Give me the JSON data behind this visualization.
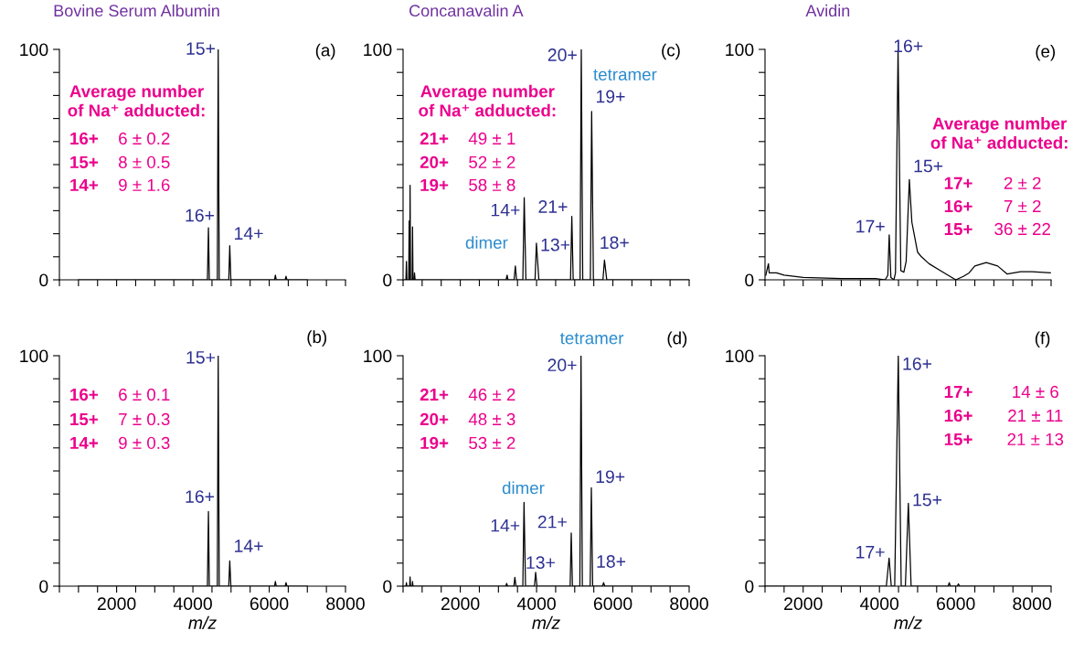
{
  "chart_data": [
    {
      "type": "line",
      "title": "Bovine Serum Albumin",
      "tick_labels": "y",
      "marker": "none",
      "line_style": "solid",
      "xlim": [
        500,
        8000
      ],
      "xticks": [
        {
          "value": 500,
          "label": null
        },
        {
          "value": 1000,
          "label": null
        },
        {
          "value": 1500,
          "label": null
        },
        {
          "value": 2000,
          "label": null
        },
        {
          "value": 2500,
          "label": null
        },
        {
          "value": 3000,
          "label": null
        },
        {
          "value": 3500,
          "label": null
        },
        {
          "value": 4000,
          "label": null
        },
        {
          "value": 4500,
          "label": null
        },
        {
          "value": 5000,
          "label": null
        },
        {
          "value": 5500,
          "label": null
        },
        {
          "value": 6000,
          "label": null
        },
        {
          "value": 6500,
          "label": null
        },
        {
          "value": 7000,
          "label": null
        },
        {
          "value": 7500,
          "label": null
        },
        {
          "value": 8000,
          "label": null
        }
      ],
      "ylim": [
        0,
        100
      ],
      "yticks": [
        0,
        {
          "value": 10,
          "label": null
        },
        {
          "value": 20,
          "label": null
        },
        {
          "value": 30,
          "label": null
        },
        {
          "value": 40,
          "label": null
        },
        {
          "value": 50,
          "label": null
        },
        {
          "value": 60,
          "label": null
        },
        {
          "value": 70,
          "label": null
        },
        {
          "value": 80,
          "label": null
        },
        {
          "value": 90,
          "label": null
        },
        100
      ],
      "series": [
        {
          "color": "#000000",
          "x": [
            1000,
            4380,
            4407,
            4430,
            4640,
            4663,
            4690,
            4940,
            4966,
            4995,
            6140,
            6162,
            6185,
            6420,
            6441,
            6465,
            7000
          ],
          "values": [
            0,
            0,
            22.6,
            0,
            0,
            100,
            0,
            0,
            14.8,
            0,
            0,
            2,
            0,
            0,
            1.5,
            0,
            0
          ]
        }
      ],
      "annotations": [
        "(a)",
        "Average number\nof Na⁺ adducted:",
        "16+",
        "6 ± 0.2",
        "15+",
        "8 ± 0.5",
        "14+",
        "9 ± 1.6",
        {
          "text": "15+",
          "x": 4663,
          "y": 100
        },
        {
          "text": "16+",
          "x": 4407,
          "y": 22.6
        },
        {
          "text": "14+",
          "x": 4966,
          "y": 14.8
        }
      ]
    },
    {
      "type": "line",
      "title": "Concanavalin A",
      "tick_labels": "y",
      "marker": "none",
      "line_style": "solid",
      "xlim": [
        500,
        8000
      ],
      "xticks": [
        {
          "value": 500,
          "label": null
        },
        {
          "value": 1000,
          "label": null
        },
        {
          "value": 1500,
          "label": null
        },
        {
          "value": 2000,
          "label": null
        },
        {
          "value": 2500,
          "label": null
        },
        {
          "value": 3000,
          "label": null
        },
        {
          "value": 3500,
          "label": null
        },
        {
          "value": 4000,
          "label": null
        },
        {
          "value": 4500,
          "label": null
        },
        {
          "value": 5000,
          "label": null
        },
        {
          "value": 5500,
          "label": null
        },
        {
          "value": 6000,
          "label": null
        },
        {
          "value": 6500,
          "label": null
        },
        {
          "value": 7000,
          "label": null
        },
        {
          "value": 7500,
          "label": null
        },
        {
          "value": 8000,
          "label": null
        }
      ],
      "ylim": [
        0,
        100
      ],
      "yticks": [
        0,
        {
          "value": 10,
          "label": null
        },
        {
          "value": 20,
          "label": null
        },
        {
          "value": 30,
          "label": null
        },
        {
          "value": 40,
          "label": null
        },
        {
          "value": 50,
          "label": null
        },
        {
          "value": 60,
          "label": null
        },
        {
          "value": 70,
          "label": null
        },
        {
          "value": 80,
          "label": null
        },
        {
          "value": 90,
          "label": null
        },
        100
      ],
      "series": [
        {
          "color": "#000000",
          "x": [
            540,
            575,
            588,
            600,
            648,
            660,
            670,
            676,
            684,
            695,
            738,
            748,
            760,
            790,
            800,
            815,
            3200,
            3228,
            3250,
            3410,
            3444,
            3475,
            3640,
            3676,
            3720,
            3960,
            3996,
            4060,
            4890,
            4924,
            4960,
            5140,
            5172,
            5210,
            5410,
            5444,
            5490,
            5740,
            5780,
            5840,
            8000
          ],
          "values": [
            0,
            0,
            8,
            0,
            0,
            25.5,
            0,
            0,
            41,
            0,
            0,
            23,
            0,
            0,
            3,
            0,
            0,
            2,
            0,
            0,
            6,
            0,
            0,
            35.7,
            0,
            0,
            15.9,
            0,
            0,
            27.5,
            0,
            0,
            100,
            0,
            0,
            73.1,
            0,
            0,
            8.6,
            0,
            0
          ]
        }
      ],
      "annotations": [
        "(c)",
        "Average number\nof Na⁺ adducted:",
        "21+",
        "49 ± 1",
        "20+",
        "52 ± 2",
        "19+",
        "58 ± 8",
        "tetramer",
        "dimer",
        {
          "text": "20+",
          "x": 5172,
          "y": 100
        },
        {
          "text": "19+",
          "x": 5444,
          "y": 73.1
        },
        {
          "text": "21+",
          "x": 4924,
          "y": 27.5
        },
        {
          "text": "14+",
          "x": 3676,
          "y": 35.7
        },
        {
          "text": "13+",
          "x": 3996,
          "y": 15.9
        },
        {
          "text": "18+",
          "x": 5780,
          "y": 8.6
        }
      ]
    },
    {
      "type": "line",
      "title": "Avidin",
      "tick_labels": "y",
      "marker": "none",
      "line_style": "solid",
      "xlim": [
        1000,
        8500
      ],
      "xticks": [
        {
          "value": 1000,
          "label": null
        },
        {
          "value": 1500,
          "label": null
        },
        {
          "value": 2000,
          "label": null
        },
        {
          "value": 2500,
          "label": null
        },
        {
          "value": 3000,
          "label": null
        },
        {
          "value": 3500,
          "label": null
        },
        {
          "value": 4000,
          "label": null
        },
        {
          "value": 4500,
          "label": null
        },
        {
          "value": 5000,
          "label": null
        },
        {
          "value": 5500,
          "label": null
        },
        {
          "value": 6000,
          "label": null
        },
        {
          "value": 6500,
          "label": null
        },
        {
          "value": 7000,
          "label": null
        },
        {
          "value": 7500,
          "label": null
        },
        {
          "value": 8000,
          "label": null
        },
        {
          "value": 8500,
          "label": null
        }
      ],
      "ylim": [
        0,
        100
      ],
      "yticks": [
        0,
        {
          "value": 10,
          "label": null
        },
        {
          "value": 20,
          "label": null
        },
        {
          "value": 30,
          "label": null
        },
        {
          "value": 40,
          "label": null
        },
        {
          "value": 50,
          "label": null
        },
        {
          "value": 60,
          "label": null
        },
        {
          "value": 70,
          "label": null
        },
        {
          "value": 80,
          "label": null
        },
        {
          "value": 90,
          "label": null
        },
        100
      ],
      "series": [
        {
          "color": "#000000",
          "x": [
            1020,
            1090,
            1110,
            1300,
            1500,
            2000,
            3000,
            3900,
            4150,
            4220,
            4256,
            4300,
            4380,
            4420,
            4488,
            4560,
            4640,
            4700,
            4784,
            4850,
            5000,
            5100,
            5300,
            5600,
            5900,
            6000,
            6200,
            6350,
            6500,
            6800,
            7100,
            7350,
            7700,
            8000,
            8480
          ],
          "values": [
            2,
            7,
            3,
            3,
            2,
            1,
            0.5,
            0.5,
            0,
            2,
            19.5,
            1,
            0,
            3,
            100,
            4,
            3.3,
            8,
            43.5,
            25,
            12,
            10,
            7,
            4,
            1,
            0,
            1.5,
            3,
            6,
            7.5,
            6,
            2.5,
            3.5,
            3.5,
            3
          ]
        }
      ],
      "annotations": [
        "(e)",
        "Average number\nof Na⁺ adducted:",
        "17+",
        "2 ± 2",
        "16+",
        "7 ± 2",
        "15+",
        "36 ± 22",
        {
          "text": "16+",
          "x": 4488,
          "y": 100
        },
        {
          "text": "15+",
          "x": 4784,
          "y": 43.5
        },
        {
          "text": "17+",
          "x": 4256,
          "y": 19.5
        }
      ]
    },
    {
      "type": "line",
      "xlabel": "m/z",
      "marker": "none",
      "line_style": "solid",
      "xlim": [
        500,
        8000
      ],
      "xticks": [
        {
          "value": 500,
          "label": null
        },
        {
          "value": 1000,
          "label": null
        },
        {
          "value": 1500,
          "label": null
        },
        2000,
        {
          "value": 2500,
          "label": null
        },
        {
          "value": 3000,
          "label": null
        },
        {
          "value": 3500,
          "label": null
        },
        4000,
        {
          "value": 4500,
          "label": null
        },
        {
          "value": 5000,
          "label": null
        },
        {
          "value": 5500,
          "label": null
        },
        6000,
        {
          "value": 6500,
          "label": null
        },
        {
          "value": 7000,
          "label": null
        },
        {
          "value": 7500,
          "label": null
        },
        8000
      ],
      "ylim": [
        0,
        100
      ],
      "yticks": [
        0,
        {
          "value": 10,
          "label": null
        },
        {
          "value": 20,
          "label": null
        },
        {
          "value": 30,
          "label": null
        },
        {
          "value": 40,
          "label": null
        },
        {
          "value": 50,
          "label": null
        },
        {
          "value": 60,
          "label": null
        },
        {
          "value": 70,
          "label": null
        },
        {
          "value": 80,
          "label": null
        },
        {
          "value": 90,
          "label": null
        },
        100
      ],
      "series": [
        {
          "color": "#000000",
          "x": [
            1000,
            4380,
            4407,
            4430,
            4640,
            4663,
            4690,
            4940,
            4966,
            4995,
            6140,
            6162,
            6185,
            6420,
            6441,
            6465,
            7000
          ],
          "values": [
            0,
            0,
            32.4,
            0,
            0,
            100,
            0,
            0,
            11.0,
            0,
            0,
            2,
            0,
            0,
            1.5,
            0,
            0
          ]
        }
      ],
      "annotations": [
        "(b)",
        "16+",
        "6 ± 0.1",
        "15+",
        "7 ± 0.3",
        "14+",
        "9 ± 0.3",
        {
          "text": "15+",
          "x": 4663,
          "y": 100
        },
        {
          "text": "16+",
          "x": 4407,
          "y": 32.4
        },
        {
          "text": "14+",
          "x": 4966,
          "y": 11.0
        }
      ]
    },
    {
      "type": "line",
      "xlabel": "m/z",
      "marker": "none",
      "line_style": "solid",
      "xlim": [
        500,
        8000
      ],
      "xticks": [
        {
          "value": 500,
          "label": null
        },
        {
          "value": 1000,
          "label": null
        },
        {
          "value": 1500,
          "label": null
        },
        2000,
        {
          "value": 2500,
          "label": null
        },
        {
          "value": 3000,
          "label": null
        },
        {
          "value": 3500,
          "label": null
        },
        4000,
        {
          "value": 4500,
          "label": null
        },
        {
          "value": 5000,
          "label": null
        },
        {
          "value": 5500,
          "label": null
        },
        6000,
        {
          "value": 6500,
          "label": null
        },
        {
          "value": 7000,
          "label": null
        },
        {
          "value": 7500,
          "label": null
        },
        8000
      ],
      "ylim": [
        0,
        100
      ],
      "yticks": [
        0,
        {
          "value": 10,
          "label": null
        },
        {
          "value": 20,
          "label": null
        },
        {
          "value": 30,
          "label": null
        },
        {
          "value": 40,
          "label": null
        },
        {
          "value": 50,
          "label": null
        },
        {
          "value": 60,
          "label": null
        },
        {
          "value": 70,
          "label": null
        },
        {
          "value": 80,
          "label": null
        },
        {
          "value": 90,
          "label": null
        },
        100
      ],
      "series": [
        {
          "color": "#000000",
          "x": [
            540,
            575,
            588,
            600,
            672,
            684,
            696,
            738,
            748,
            760,
            3195,
            3216,
            3240,
            3405,
            3431,
            3460,
            3640,
            3671,
            3710,
            3945,
            3975,
            4010,
            4880,
            4909,
            4940,
            5135,
            5165,
            5200,
            5405,
            5436,
            5470,
            5730,
            5756,
            5790,
            8000
          ],
          "values": [
            0,
            0,
            1.5,
            0,
            0,
            4,
            0,
            0,
            2,
            0,
            0,
            1.2,
            0,
            0,
            3.8,
            0,
            0,
            36.4,
            0,
            0,
            6.0,
            0,
            0,
            23.1,
            0,
            0,
            100,
            0,
            0,
            42.7,
            0,
            0,
            1.5,
            0,
            0
          ]
        }
      ],
      "annotations": [
        "(d)",
        "tetramer",
        "21+",
        "46 ± 2",
        "20+",
        "48 ± 3",
        "19+",
        "53 ± 2",
        "dimer",
        {
          "text": "20+",
          "x": 5165,
          "y": 100
        },
        {
          "text": "19+",
          "x": 5436,
          "y": 42.7
        },
        {
          "text": "21+",
          "x": 4909,
          "y": 23.1
        },
        {
          "text": "14+",
          "x": 3671,
          "y": 36.4
        },
        {
          "text": "13+",
          "x": 3975,
          "y": 6.0
        },
        {
          "text": "18+",
          "x": 5756,
          "y": 1.5
        }
      ]
    },
    {
      "type": "line",
      "xlabel": "m/z",
      "marker": "none",
      "line_style": "solid",
      "xlim": [
        1000,
        8500
      ],
      "xticks": [
        {
          "value": 1000,
          "label": null
        },
        {
          "value": 1500,
          "label": null
        },
        2000,
        {
          "value": 2500,
          "label": null
        },
        {
          "value": 3000,
          "label": null
        },
        {
          "value": 3500,
          "label": null
        },
        4000,
        {
          "value": 4500,
          "label": null
        },
        {
          "value": 5000,
          "label": null
        },
        {
          "value": 5500,
          "label": null
        },
        6000,
        {
          "value": 6500,
          "label": null
        },
        {
          "value": 7000,
          "label": null
        },
        {
          "value": 7500,
          "label": null
        },
        8000,
        {
          "value": 8500,
          "label": null
        }
      ],
      "ylim": [
        0,
        100
      ],
      "yticks": [
        0,
        {
          "value": 10,
          "label": null
        },
        {
          "value": 20,
          "label": null
        },
        {
          "value": 30,
          "label": null
        },
        {
          "value": 40,
          "label": null
        },
        {
          "value": 50,
          "label": null
        },
        {
          "value": 60,
          "label": null
        },
        {
          "value": 70,
          "label": null
        },
        {
          "value": 80,
          "label": null
        },
        {
          "value": 90,
          "label": null
        },
        100
      ],
      "series": [
        {
          "color": "#000000",
          "x": [
            1000,
            4180,
            4253,
            4310,
            4400,
            4494,
            4570,
            4680,
            4758,
            4830,
            5800,
            5830,
            5860,
            6040,
            6070,
            6100,
            8500
          ],
          "values": [
            0,
            0,
            12.2,
            0,
            0,
            100,
            0,
            0,
            36.0,
            0,
            0,
            1.5,
            0,
            0,
            1,
            0,
            0
          ]
        }
      ],
      "annotations": [
        "(f)",
        "17+",
        "14 ± 6",
        "16+",
        "21 ± 11",
        "15+",
        "21 ± 13",
        {
          "text": "16+",
          "x": 4494,
          "y": 100
        },
        {
          "text": "15+",
          "x": 4758,
          "y": 36.0
        },
        {
          "text": "17+",
          "x": 4253,
          "y": 12.2
        }
      ]
    }
  ]
}
